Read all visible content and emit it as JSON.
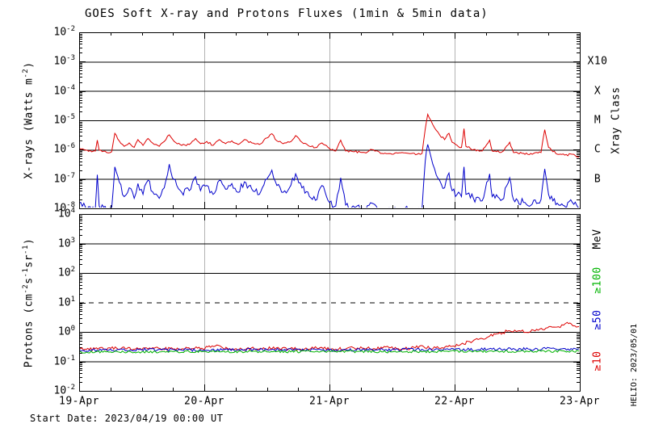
{
  "title": "GOES Soft X-ray and Protons Fluxes   (1min & 5min data)",
  "footer": {
    "start_date": "Start Date: 2023/04/19 00:00 UT",
    "watermark": "HELIO: 2023/05/01"
  },
  "colors": {
    "xray_long": "#dd0000",
    "xray_short": "#0000cc",
    "protons_ge10": "#dd0000",
    "protons_ge50": "#0000cc",
    "protons_ge100": "#00b400",
    "grid_gray": "#b3b3b3",
    "axis_black": "#000000"
  },
  "x_axis": {
    "tick_labels": [
      "19-Apr",
      "20-Apr",
      "21-Apr",
      "22-Apr",
      "23-Apr"
    ],
    "days": 4,
    "minor_ticks_per_day": 4,
    "gridline_days": [
      1,
      2,
      3
    ]
  },
  "chart_data": [
    {
      "type": "line",
      "panel": "xray",
      "ylabel_segments": [
        {
          "t": "X-rays (Watts m"
        },
        {
          "t": "-2",
          "sup": true
        },
        {
          "t": ")"
        }
      ],
      "y_exp_top": -2,
      "y_exp_bottom": -8,
      "hlines_dashed_exp": [],
      "right_axis_title": "Xray Class",
      "right_labels": [
        {
          "text": "X10",
          "exp": -3,
          "color": "#000000"
        },
        {
          "text": "X",
          "exp": -4,
          "color": "#000000"
        },
        {
          "text": "M",
          "exp": -5,
          "color": "#000000"
        },
        {
          "text": "C",
          "exp": -6,
          "color": "#000000"
        },
        {
          "text": "B",
          "exp": -7,
          "color": "#000000"
        }
      ],
      "series": [
        {
          "name": "xray-long-0.1-0.8nm",
          "color": "#dd0000",
          "noise_log10": 0.035,
          "points": [
            [
              0.0,
              1.15e-06
            ],
            [
              0.05,
              9.5e-07
            ],
            [
              0.1,
              8.5e-07
            ],
            [
              0.13,
              9e-07
            ],
            [
              0.145,
              2.1e-06
            ],
            [
              0.16,
              9.5e-07
            ],
            [
              0.22,
              8e-07
            ],
            [
              0.26,
              8.5e-07
            ],
            [
              0.285,
              3.6e-06
            ],
            [
              0.32,
              2e-06
            ],
            [
              0.36,
              1.3e-06
            ],
            [
              0.4,
              1.7e-06
            ],
            [
              0.44,
              1.2e-06
            ],
            [
              0.47,
              2.2e-06
            ],
            [
              0.51,
              1.4e-06
            ],
            [
              0.55,
              2.4e-06
            ],
            [
              0.6,
              1.5e-06
            ],
            [
              0.64,
              1.3e-06
            ],
            [
              0.68,
              1.9e-06
            ],
            [
              0.72,
              3.2e-06
            ],
            [
              0.76,
              1.9e-06
            ],
            [
              0.82,
              1.4e-06
            ],
            [
              0.88,
              1.5e-06
            ],
            [
              0.93,
              2.4e-06
            ],
            [
              0.97,
              1.6e-06
            ],
            [
              1.02,
              1.9e-06
            ],
            [
              1.07,
              1.4e-06
            ],
            [
              1.12,
              2.2e-06
            ],
            [
              1.17,
              1.6e-06
            ],
            [
              1.22,
              2e-06
            ],
            [
              1.27,
              1.5e-06
            ],
            [
              1.32,
              2.2e-06
            ],
            [
              1.38,
              1.7e-06
            ],
            [
              1.44,
              1.5e-06
            ],
            [
              1.5,
              2.5e-06
            ],
            [
              1.54,
              3.5e-06
            ],
            [
              1.58,
              2e-06
            ],
            [
              1.63,
              1.6e-06
            ],
            [
              1.68,
              1.8e-06
            ],
            [
              1.73,
              3e-06
            ],
            [
              1.78,
              1.8e-06
            ],
            [
              1.84,
              1.3e-06
            ],
            [
              1.9,
              1.2e-06
            ],
            [
              1.94,
              1.7e-06
            ],
            [
              2.0,
              1.1e-06
            ],
            [
              2.05,
              9e-07
            ],
            [
              2.09,
              2.1e-06
            ],
            [
              2.13,
              9e-07
            ],
            [
              2.2,
              8.5e-07
            ],
            [
              2.28,
              8e-07
            ],
            [
              2.34,
              1e-06
            ],
            [
              2.42,
              7.5e-07
            ],
            [
              2.5,
              7e-07
            ],
            [
              2.58,
              8e-07
            ],
            [
              2.63,
              7.5e-07
            ],
            [
              2.7,
              7e-07
            ],
            [
              2.74,
              7.5e-07
            ],
            [
              2.765,
              5e-06
            ],
            [
              2.785,
              1.6e-05
            ],
            [
              2.81,
              1e-05
            ],
            [
              2.84,
              5.5e-06
            ],
            [
              2.88,
              3.2e-06
            ],
            [
              2.92,
              2.2e-06
            ],
            [
              2.955,
              3.6e-06
            ],
            [
              2.98,
              1.8e-06
            ],
            [
              3.02,
              1.4e-06
            ],
            [
              3.055,
              1.2e-06
            ],
            [
              3.075,
              5.2e-06
            ],
            [
              3.09,
              1.3e-06
            ],
            [
              3.15,
              1e-06
            ],
            [
              3.22,
              9e-07
            ],
            [
              3.28,
              2.1e-06
            ],
            [
              3.3,
              9e-07
            ],
            [
              3.38,
              8.5e-07
            ],
            [
              3.44,
              1.8e-06
            ],
            [
              3.47,
              8e-07
            ],
            [
              3.55,
              7.5e-07
            ],
            [
              3.62,
              7e-07
            ],
            [
              3.69,
              8e-07
            ],
            [
              3.72,
              4.8e-06
            ],
            [
              3.75,
              1.2e-06
            ],
            [
              3.82,
              7e-07
            ],
            [
              3.88,
              6.5e-07
            ],
            [
              3.94,
              7e-07
            ],
            [
              4.0,
              5.5e-07
            ]
          ]
        },
        {
          "name": "xray-short-0.05-0.4nm",
          "color": "#0000cc",
          "noise_log10": 0.12,
          "points": [
            [
              0.0,
              1.5e-08
            ],
            [
              0.05,
              1.1e-08
            ],
            [
              0.1,
              9e-09
            ],
            [
              0.13,
              1.1e-08
            ],
            [
              0.145,
              1.4e-07
            ],
            [
              0.16,
              1.2e-08
            ],
            [
              0.22,
              9e-09
            ],
            [
              0.26,
              1e-08
            ],
            [
              0.285,
              2.6e-07
            ],
            [
              0.32,
              8e-08
            ],
            [
              0.36,
              2.5e-08
            ],
            [
              0.4,
              5e-08
            ],
            [
              0.44,
              2.2e-08
            ],
            [
              0.47,
              7e-08
            ],
            [
              0.51,
              3e-08
            ],
            [
              0.55,
              9e-08
            ],
            [
              0.6,
              3e-08
            ],
            [
              0.64,
              2.2e-08
            ],
            [
              0.68,
              5e-08
            ],
            [
              0.72,
              3.2e-07
            ],
            [
              0.745,
              1.1e-07
            ],
            [
              0.78,
              6e-08
            ],
            [
              0.82,
              3.5e-08
            ],
            [
              0.88,
              4e-08
            ],
            [
              0.93,
              1.2e-07
            ],
            [
              0.97,
              4e-08
            ],
            [
              1.02,
              6e-08
            ],
            [
              1.07,
              3e-08
            ],
            [
              1.12,
              9e-08
            ],
            [
              1.17,
              4.5e-08
            ],
            [
              1.22,
              7e-08
            ],
            [
              1.27,
              3.5e-08
            ],
            [
              1.32,
              8e-08
            ],
            [
              1.38,
              4.5e-08
            ],
            [
              1.44,
              3e-08
            ],
            [
              1.5,
              1e-07
            ],
            [
              1.54,
              2e-07
            ],
            [
              1.58,
              6e-08
            ],
            [
              1.63,
              3.5e-08
            ],
            [
              1.68,
              5e-08
            ],
            [
              1.73,
              1.5e-07
            ],
            [
              1.78,
              5e-08
            ],
            [
              1.84,
              2.5e-08
            ],
            [
              1.9,
              2e-08
            ],
            [
              1.94,
              6e-08
            ],
            [
              2.0,
              1.6e-08
            ],
            [
              2.05,
              1.2e-08
            ],
            [
              2.09,
              1.1e-07
            ],
            [
              2.13,
              1.3e-08
            ],
            [
              2.2,
              1.1e-08
            ],
            [
              2.28,
              1e-08
            ],
            [
              2.34,
              1.5e-08
            ],
            [
              2.42,
              9e-09
            ],
            [
              2.5,
              8e-09
            ],
            [
              2.58,
              1e-08
            ],
            [
              2.63,
              9e-09
            ],
            [
              2.7,
              9e-09
            ],
            [
              2.74,
              1e-08
            ],
            [
              2.765,
              4e-07
            ],
            [
              2.785,
              1.5e-06
            ],
            [
              2.81,
              6e-07
            ],
            [
              2.84,
              2.2e-07
            ],
            [
              2.88,
              9e-08
            ],
            [
              2.92,
              5e-08
            ],
            [
              2.955,
              1.6e-07
            ],
            [
              2.98,
              4e-08
            ],
            [
              3.02,
              3e-08
            ],
            [
              3.055,
              2.5e-08
            ],
            [
              3.075,
              2.6e-07
            ],
            [
              3.09,
              3e-08
            ],
            [
              3.15,
              2.2e-08
            ],
            [
              3.22,
              1.8e-08
            ],
            [
              3.28,
              1.5e-07
            ],
            [
              3.3,
              2.5e-08
            ],
            [
              3.38,
              2e-08
            ],
            [
              3.44,
              1.1e-07
            ],
            [
              3.47,
              2e-08
            ],
            [
              3.55,
              1.6e-08
            ],
            [
              3.62,
              1.4e-08
            ],
            [
              3.69,
              2e-08
            ],
            [
              3.72,
              2.2e-07
            ],
            [
              3.75,
              3e-08
            ],
            [
              3.82,
              1.5e-08
            ],
            [
              3.88,
              1.2e-08
            ],
            [
              3.94,
              1.6e-08
            ],
            [
              4.0,
              1.1e-08
            ]
          ]
        }
      ]
    },
    {
      "type": "line",
      "panel": "protons",
      "ylabel_segments": [
        {
          "t": "Protons (cm"
        },
        {
          "t": "-2",
          "sup": true
        },
        {
          "t": "s"
        },
        {
          "t": "-1",
          "sup": true
        },
        {
          "t": "sr"
        },
        {
          "t": "-1",
          "sup": true
        },
        {
          "t": ")"
        }
      ],
      "y_exp_top": 4,
      "y_exp_bottom": -2,
      "hlines_dashed_exp": [
        1
      ],
      "right_axis_title": "",
      "right_labels_rotated": [
        {
          "text": "MeV",
          "color": "#000000",
          "pos": 0.14
        },
        {
          "text": "≥100",
          "color": "#00b400",
          "pos": 0.375
        },
        {
          "text": "≥50",
          "color": "#0000cc",
          "pos": 0.6
        },
        {
          "text": "≥10",
          "color": "#dd0000",
          "pos": 0.83
        }
      ],
      "series": [
        {
          "name": "protons-ge10MeV",
          "color": "#dd0000",
          "noise_log10": 0.055,
          "points": [
            [
              0.0,
              0.27
            ],
            [
              0.15,
              0.26
            ],
            [
              0.3,
              0.28
            ],
            [
              0.45,
              0.26
            ],
            [
              0.6,
              0.28
            ],
            [
              0.75,
              0.26
            ],
            [
              0.9,
              0.27
            ],
            [
              1.05,
              0.3
            ],
            [
              1.1,
              0.36
            ],
            [
              1.15,
              0.28
            ],
            [
              1.3,
              0.26
            ],
            [
              1.45,
              0.28
            ],
            [
              1.6,
              0.27
            ],
            [
              1.75,
              0.26
            ],
            [
              1.9,
              0.28
            ],
            [
              2.05,
              0.26
            ],
            [
              2.2,
              0.28
            ],
            [
              2.35,
              0.27
            ],
            [
              2.45,
              0.31
            ],
            [
              2.55,
              0.27
            ],
            [
              2.65,
              0.28
            ],
            [
              2.72,
              0.33
            ],
            [
              2.8,
              0.28
            ],
            [
              2.9,
              0.29
            ],
            [
              2.97,
              0.32
            ],
            [
              3.05,
              0.38
            ],
            [
              3.12,
              0.47
            ],
            [
              3.2,
              0.58
            ],
            [
              3.28,
              0.72
            ],
            [
              3.35,
              0.88
            ],
            [
              3.42,
              1.05
            ],
            [
              3.48,
              1.15
            ],
            [
              3.53,
              1.05
            ],
            [
              3.58,
              0.95
            ],
            [
              3.63,
              1.15
            ],
            [
              3.68,
              1.25
            ],
            [
              3.73,
              1.35
            ],
            [
              3.78,
              1.45
            ],
            [
              3.83,
              1.5
            ],
            [
              3.87,
              1.7
            ],
            [
              3.9,
              2.1
            ],
            [
              3.93,
              1.9
            ],
            [
              3.96,
              1.6
            ],
            [
              4.0,
              1.5
            ]
          ]
        },
        {
          "name": "protons-ge50MeV",
          "color": "#0000cc",
          "noise_log10": 0.05,
          "points": [
            [
              0.0,
              0.24
            ],
            [
              0.5,
              0.25
            ],
            [
              1.0,
              0.24
            ],
            [
              1.5,
              0.25
            ],
            [
              2.0,
              0.24
            ],
            [
              2.5,
              0.25
            ],
            [
              3.0,
              0.25
            ],
            [
              3.3,
              0.26
            ],
            [
              3.6,
              0.26
            ],
            [
              3.8,
              0.27
            ],
            [
              4.0,
              0.26
            ]
          ]
        },
        {
          "name": "protons-ge100MeV",
          "color": "#00b400",
          "noise_log10": 0.04,
          "points": [
            [
              0.0,
              0.21
            ],
            [
              0.5,
              0.21
            ],
            [
              1.0,
              0.22
            ],
            [
              1.5,
              0.21
            ],
            [
              2.0,
              0.22
            ],
            [
              2.5,
              0.21
            ],
            [
              3.0,
              0.22
            ],
            [
              3.5,
              0.22
            ],
            [
              4.0,
              0.22
            ]
          ]
        }
      ]
    }
  ]
}
